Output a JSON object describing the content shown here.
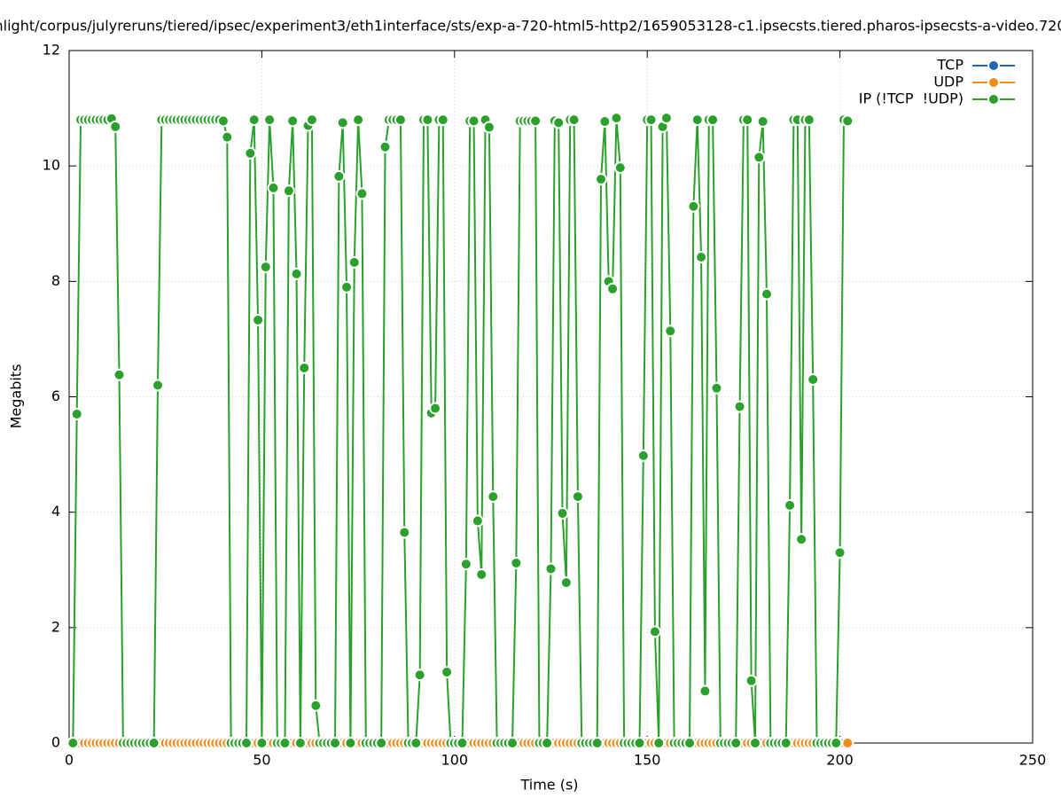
{
  "chart_data": {
    "type": "line",
    "title": "nlight/corpus/julyreruns/tiered/ipsec/experiment3/eth1interface/sts/exp-a-720-html5-http2/1659053128-c1.ipsecsts.tiered.pharos-ipsecsts-a-video.720",
    "x_label": "Time (s)",
    "y_label": "Megabits",
    "xlim": [
      0,
      250
    ],
    "xticks": [
      0,
      50,
      100,
      150,
      200,
      250
    ],
    "ylim": [
      0,
      12
    ],
    "yticks": [
      0,
      2,
      4,
      6,
      8,
      10,
      12
    ],
    "grid": true,
    "legend": "top-right",
    "x": [
      1,
      2,
      3,
      4,
      5,
      6,
      7,
      8,
      9,
      10,
      11,
      12,
      13,
      14,
      15,
      16,
      17,
      18,
      19,
      20,
      21,
      22,
      23,
      24,
      25,
      26,
      27,
      28,
      29,
      30,
      31,
      32,
      33,
      34,
      35,
      36,
      37,
      38,
      39,
      40,
      41,
      42,
      43,
      44,
      45,
      46,
      47,
      48,
      49,
      50,
      51,
      52,
      53,
      54,
      55,
      56,
      57,
      58,
      59,
      60,
      61,
      62,
      63,
      64,
      65,
      66,
      67,
      68,
      69,
      70,
      71,
      72,
      73,
      74,
      75,
      76,
      77,
      78,
      79,
      80,
      81,
      82,
      83,
      84,
      85,
      86,
      87,
      88,
      89,
      90,
      91,
      92,
      93,
      94,
      95,
      96,
      97,
      98,
      99,
      100,
      101,
      102,
      103,
      104,
      105,
      106,
      107,
      108,
      109,
      110,
      111,
      112,
      113,
      114,
      115,
      116,
      117,
      118,
      119,
      120,
      121,
      122,
      123,
      124,
      125,
      126,
      127,
      128,
      129,
      130,
      131,
      132,
      133,
      134,
      135,
      136,
      137,
      138,
      139,
      140,
      141,
      142,
      143,
      144,
      145,
      146,
      147,
      148,
      149,
      150,
      151,
      152,
      153,
      154,
      155,
      156,
      157,
      158,
      159,
      160,
      161,
      162,
      163,
      164,
      165,
      166,
      167,
      168,
      169,
      170,
      171,
      172,
      173,
      174,
      175,
      176,
      177,
      178,
      179,
      180,
      181,
      182,
      183,
      184,
      185,
      186,
      187,
      188,
      189,
      190,
      191,
      192,
      193,
      194,
      195,
      196,
      197,
      198,
      199,
      200,
      201,
      202
    ],
    "series": [
      {
        "name": "TCP",
        "color": "#1f65b0",
        "values": [
          0,
          0,
          0,
          0,
          0,
          0,
          0,
          0,
          0,
          0,
          0,
          0,
          0,
          0,
          0,
          0,
          0,
          0,
          0,
          0,
          0,
          0,
          0,
          0,
          0,
          0,
          0,
          0,
          0,
          0,
          0,
          0,
          0,
          0,
          0,
          0,
          0,
          0,
          0,
          0,
          0,
          0,
          0,
          0,
          0,
          0,
          0,
          0,
          0,
          0,
          0,
          0,
          0,
          0,
          0,
          0,
          0,
          0,
          0,
          0,
          0,
          0,
          0,
          0,
          0,
          0,
          0,
          0,
          0,
          0,
          0,
          0,
          0,
          0,
          0,
          0,
          0,
          0,
          0,
          0,
          0,
          0,
          0,
          0,
          0,
          0,
          0,
          0,
          0,
          0,
          0,
          0,
          0,
          0,
          0,
          0,
          0,
          0,
          0,
          0,
          0,
          0,
          0,
          0,
          0,
          0,
          0,
          0,
          0,
          0,
          0,
          0,
          0,
          0,
          0,
          0,
          0,
          0,
          0,
          0,
          0,
          0,
          0,
          0,
          0,
          0,
          0,
          0,
          0,
          0,
          0,
          0,
          0,
          0,
          0,
          0,
          0,
          0,
          0,
          0,
          0,
          0,
          0,
          0,
          0,
          0,
          0,
          0,
          0,
          0,
          0,
          0,
          0,
          0,
          0,
          0,
          0,
          0,
          0,
          0,
          0,
          0,
          0,
          0,
          0,
          0,
          0,
          0,
          0,
          0,
          0,
          0,
          0,
          0,
          0,
          0,
          0,
          0,
          0,
          0,
          0,
          0,
          0,
          0,
          0,
          0,
          0,
          0,
          0,
          0,
          0,
          0,
          0,
          0,
          0,
          0,
          0,
          0,
          0,
          0,
          0,
          0
        ]
      },
      {
        "name": "UDP",
        "color": "#f28a1a",
        "values": [
          0,
          0,
          0,
          0,
          0,
          0,
          0,
          0,
          0,
          0,
          0,
          0,
          0,
          0,
          0,
          0,
          0,
          0,
          0,
          0,
          0,
          0,
          0,
          0,
          0,
          0,
          0,
          0,
          0,
          0,
          0,
          0,
          0,
          0,
          0,
          0,
          0,
          0,
          0,
          0,
          0,
          0,
          0,
          0,
          0,
          0,
          0,
          0,
          0,
          0,
          0,
          0,
          0,
          0,
          0,
          0,
          0,
          0,
          0,
          0,
          0,
          0,
          0,
          0,
          0,
          0,
          0,
          0,
          0,
          0,
          0,
          0,
          0,
          0,
          0,
          0,
          0,
          0,
          0,
          0,
          0,
          0,
          0,
          0,
          0,
          0,
          0,
          0,
          0,
          0,
          0,
          0,
          0,
          0,
          0,
          0,
          0,
          0,
          0,
          0,
          0,
          0,
          0,
          0,
          0,
          0,
          0,
          0,
          0,
          0,
          0,
          0,
          0,
          0,
          0,
          0,
          0,
          0,
          0,
          0,
          0,
          0,
          0,
          0,
          0,
          0,
          0,
          0,
          0,
          0,
          0,
          0,
          0,
          0,
          0,
          0,
          0,
          0,
          0,
          0,
          0,
          0,
          0,
          0,
          0,
          0,
          0,
          0,
          0,
          0,
          0,
          0,
          0,
          0,
          0,
          0,
          0,
          0,
          0,
          0,
          0,
          0,
          0,
          0,
          0,
          0,
          0,
          0,
          0,
          0,
          0,
          0,
          0,
          0,
          0,
          0,
          0,
          0,
          0,
          0,
          0,
          0,
          0,
          0,
          0,
          0,
          0,
          0,
          0,
          0,
          0,
          0,
          0,
          0,
          0,
          0,
          0,
          0,
          0,
          0,
          0,
          0
        ]
      },
      {
        "name": "IP (!TCP  !UDP)",
        "color": "#2ca02c",
        "values": [
          0,
          5.7,
          10.8,
          10.8,
          10.8,
          10.8,
          10.8,
          10.8,
          10.8,
          10.8,
          10.82,
          10.68,
          6.38,
          0,
          0,
          0,
          0,
          0,
          0,
          0,
          0,
          0,
          6.2,
          10.8,
          10.8,
          10.8,
          10.8,
          10.8,
          10.8,
          10.8,
          10.8,
          10.8,
          10.8,
          10.8,
          10.8,
          10.8,
          10.8,
          10.8,
          10.8,
          10.78,
          10.5,
          0,
          0,
          0,
          0,
          0,
          10.22,
          10.8,
          7.33,
          0,
          8.25,
          10.8,
          9.62,
          0,
          0,
          0,
          9.57,
          10.78,
          8.13,
          0,
          6.5,
          10.7,
          10.8,
          0.65,
          0,
          0,
          0,
          0,
          0,
          9.82,
          10.75,
          7.9,
          0,
          8.33,
          10.8,
          9.52,
          0,
          0,
          0,
          0,
          0,
          10.33,
          10.8,
          10.8,
          10.8,
          10.8,
          3.65,
          0,
          0,
          0,
          1.18,
          10.8,
          10.8,
          5.72,
          5.8,
          10.8,
          10.8,
          1.23,
          0,
          0,
          0,
          0,
          3.1,
          10.78,
          10.78,
          3.85,
          2.92,
          10.8,
          10.67,
          4.27,
          0,
          0,
          0,
          0,
          0,
          3.12,
          10.78,
          10.78,
          10.78,
          10.78,
          10.78,
          0,
          0,
          0,
          3.02,
          10.78,
          10.75,
          3.98,
          2.78,
          10.8,
          10.8,
          4.27,
          0,
          0,
          0,
          0,
          0,
          9.77,
          10.77,
          8.0,
          7.87,
          10.83,
          9.97,
          0,
          0,
          0,
          0,
          0,
          4.98,
          10.8,
          10.8,
          1.93,
          0,
          10.68,
          10.83,
          7.14,
          0,
          0,
          0,
          0,
          0,
          9.3,
          10.8,
          8.42,
          0.9,
          10.8,
          10.8,
          6.15,
          0,
          0,
          0,
          0,
          0,
          5.83,
          10.8,
          10.8,
          1.08,
          0,
          10.15,
          10.77,
          7.78,
          0,
          0,
          0,
          0,
          0,
          4.12,
          10.8,
          10.8,
          3.53,
          10.8,
          10.8,
          6.3,
          0,
          0,
          0,
          0,
          0,
          0,
          3.3,
          10.8,
          10.78
        ]
      }
    ]
  }
}
